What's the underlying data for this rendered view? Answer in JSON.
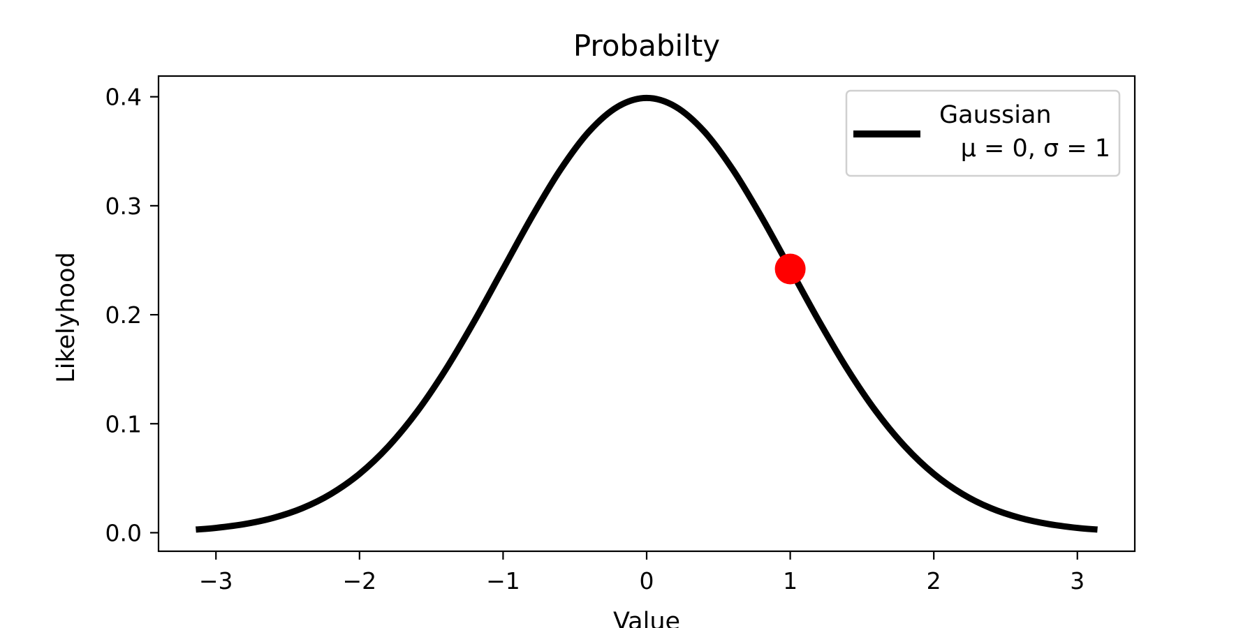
{
  "chart_data": {
    "type": "line",
    "title": "Probabilty",
    "xlabel": "Value",
    "ylabel": "Likelyhood",
    "xlim": [
      -3.4,
      3.4
    ],
    "ylim": [
      -0.017,
      0.419
    ],
    "x_ticks": [
      -3,
      -2,
      -1,
      0,
      1,
      2,
      3
    ],
    "x_tick_labels": [
      "−3",
      "−2",
      "−1",
      "0",
      "1",
      "2",
      "3"
    ],
    "y_ticks": [
      0.0,
      0.1,
      0.2,
      0.3,
      0.4
    ],
    "y_tick_labels": [
      "0.0",
      "0.1",
      "0.2",
      "0.3",
      "0.4"
    ],
    "grid": false,
    "legend_position": "top-right",
    "series": [
      {
        "name": "Gaussian",
        "legend_label_lines": [
          "Gaussian",
          "μ = 0, σ = 1"
        ],
        "color": "#000000",
        "x": [
          -3.14,
          -3.0,
          -2.8,
          -2.6,
          -2.4,
          -2.2,
          -2.0,
          -1.8,
          -1.6,
          -1.4,
          -1.2,
          -1.0,
          -0.8,
          -0.6,
          -0.4,
          -0.2,
          0.0,
          0.2,
          0.4,
          0.6,
          0.8,
          1.0,
          1.2,
          1.4,
          1.6,
          1.8,
          2.0,
          2.2,
          2.4,
          2.6,
          2.8,
          3.0,
          3.14
        ],
        "y": [
          0.0029,
          0.0044,
          0.0079,
          0.0136,
          0.0224,
          0.0355,
          0.054,
          0.079,
          0.1109,
          0.1497,
          0.1942,
          0.242,
          0.2897,
          0.3332,
          0.3683,
          0.391,
          0.3989,
          0.391,
          0.3683,
          0.3332,
          0.2897,
          0.242,
          0.1942,
          0.1497,
          0.1109,
          0.079,
          0.054,
          0.0355,
          0.0224,
          0.0136,
          0.0079,
          0.0044,
          0.0029
        ]
      }
    ],
    "highlight_point": {
      "x": 1.0,
      "y": 0.242,
      "color": "#ff0000"
    }
  }
}
